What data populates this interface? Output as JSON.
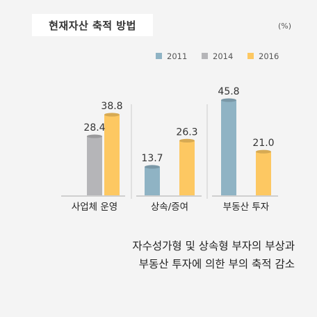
{
  "chart_data": {
    "type": "bar",
    "title": "현재자산 축적 방법",
    "unit": "(%)",
    "categories": [
      "사업체 운영",
      "상속/증여",
      "부동산 투자"
    ],
    "series": [
      {
        "name": "2011",
        "values": [
          null,
          13.7,
          45.8
        ],
        "color": "#8fb3c4"
      },
      {
        "name": "2014",
        "values": [
          28.4,
          null,
          null
        ],
        "color": "#b5b5b8"
      },
      {
        "name": "2016",
        "values": [
          38.8,
          26.3,
          21.0
        ],
        "color": "#fdc862"
      }
    ],
    "data_labels": [
      [
        "",
        "28.4",
        "38.8"
      ],
      [
        "13.7",
        "",
        "26.3"
      ],
      [
        "45.8",
        "",
        "21.0"
      ]
    ],
    "legend_position": "top-right",
    "grid": false
  },
  "caption": {
    "line1": "자수성가형 및 상속형 부자의 부상과",
    "line2": "부동산 투자에 의한 부의 축적 감소"
  }
}
